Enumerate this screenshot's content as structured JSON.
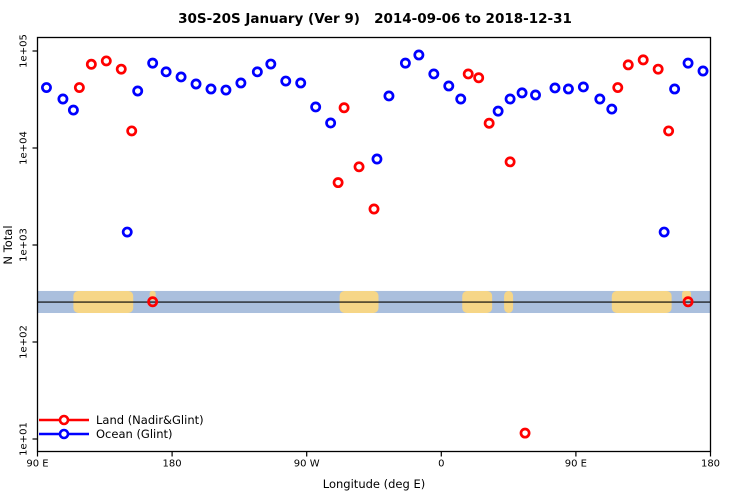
{
  "title": "30S-20S January (Ver 9)   2014-09-06 to 2018-12-31",
  "y_axis": {
    "label": "N Total",
    "scale": "log",
    "tick_labels": [
      "1e+05",
      "1e+04",
      "1e+03",
      "1e+02",
      "1e+01"
    ],
    "tick_values": [
      100000,
      10000,
      1000,
      100,
      10
    ]
  },
  "x_axis": {
    "label": "Longitude (deg E)",
    "tick_labels": [
      "90 E",
      "180",
      "90 W",
      "0",
      "90 E",
      "180"
    ],
    "tick_positions_deg": [
      0,
      90,
      180,
      270,
      360,
      450
    ],
    "span_deg": 450
  },
  "legend": [
    {
      "label": "Land (Nadir&Glint)",
      "color": "#FF0000"
    },
    {
      "label": "Ocean (Glint)",
      "color": "#0000FF"
    }
  ],
  "chart_data": {
    "type": "scatter",
    "title": "30S-20S January (Ver 9)   2014-09-06 to 2018-12-31",
    "xlabel": "Longitude (deg E)",
    "ylabel": "N Total",
    "x_unit": "degrees eastward from left edge (left edge = 90 E, axis wraps 450 degrees)",
    "y_log_range": [
      10,
      100000
    ],
    "grid": false,
    "legend_position": "bottom-left",
    "series": [
      {
        "name": "Land (Nadir&Glint)",
        "color": "#FF0000",
        "marker": "open-circle",
        "points": [
          [
            28,
            42000
          ],
          [
            36,
            73000
          ],
          [
            46,
            79000
          ],
          [
            56,
            65000
          ],
          [
            63,
            15000
          ],
          [
            77,
            260
          ],
          [
            201,
            4400
          ],
          [
            205,
            26000
          ],
          [
            215,
            6400
          ],
          [
            225,
            2350
          ],
          [
            288,
            58000
          ],
          [
            295,
            53000
          ],
          [
            302,
            18000
          ],
          [
            316,
            7200
          ],
          [
            326,
            11.5
          ],
          [
            388,
            42000
          ],
          [
            395,
            72000
          ],
          [
            405,
            81000
          ],
          [
            415,
            65000
          ],
          [
            422,
            15000
          ],
          [
            435,
            260
          ]
        ]
      },
      {
        "name": "Ocean (Glint)",
        "color": "#0000FF",
        "marker": "open-circle",
        "points": [
          [
            6,
            42000
          ],
          [
            17,
            32000
          ],
          [
            24,
            24600
          ],
          [
            60,
            1360
          ],
          [
            67,
            38700
          ],
          [
            77,
            75000
          ],
          [
            86,
            61000
          ],
          [
            96,
            54000
          ],
          [
            106,
            45700
          ],
          [
            116,
            40600
          ],
          [
            126,
            39600
          ],
          [
            136,
            46800
          ],
          [
            147,
            61000
          ],
          [
            156,
            73400
          ],
          [
            166,
            49000
          ],
          [
            176,
            46800
          ],
          [
            186,
            26500
          ],
          [
            196,
            18100
          ],
          [
            227,
            7700
          ],
          [
            235,
            34400
          ],
          [
            246,
            75000
          ],
          [
            255,
            91000
          ],
          [
            265,
            58000
          ],
          [
            275,
            43600
          ],
          [
            283,
            32000
          ],
          [
            308,
            24000
          ],
          [
            316,
            32000
          ],
          [
            324,
            37000
          ],
          [
            333,
            35200
          ],
          [
            346,
            41600
          ],
          [
            355,
            40600
          ],
          [
            365,
            42600
          ],
          [
            376,
            32000
          ],
          [
            384,
            25200
          ],
          [
            419,
            1360
          ],
          [
            426,
            40600
          ],
          [
            435,
            75000
          ],
          [
            445,
            62200
          ]
        ]
      }
    ],
    "map_strip": {
      "ocean_color": "#aabfdd",
      "land_color": "#f6d687",
      "value_top": 336,
      "value_bottom": 199,
      "line_value": 258,
      "land_segments": [
        [
          24,
          64
        ],
        [
          202,
          228
        ],
        [
          284,
          304
        ],
        [
          312,
          318
        ],
        [
          384,
          424
        ]
      ],
      "land_notches_top": [
        [
          75,
          79
        ],
        [
          431,
          437
        ]
      ]
    }
  }
}
